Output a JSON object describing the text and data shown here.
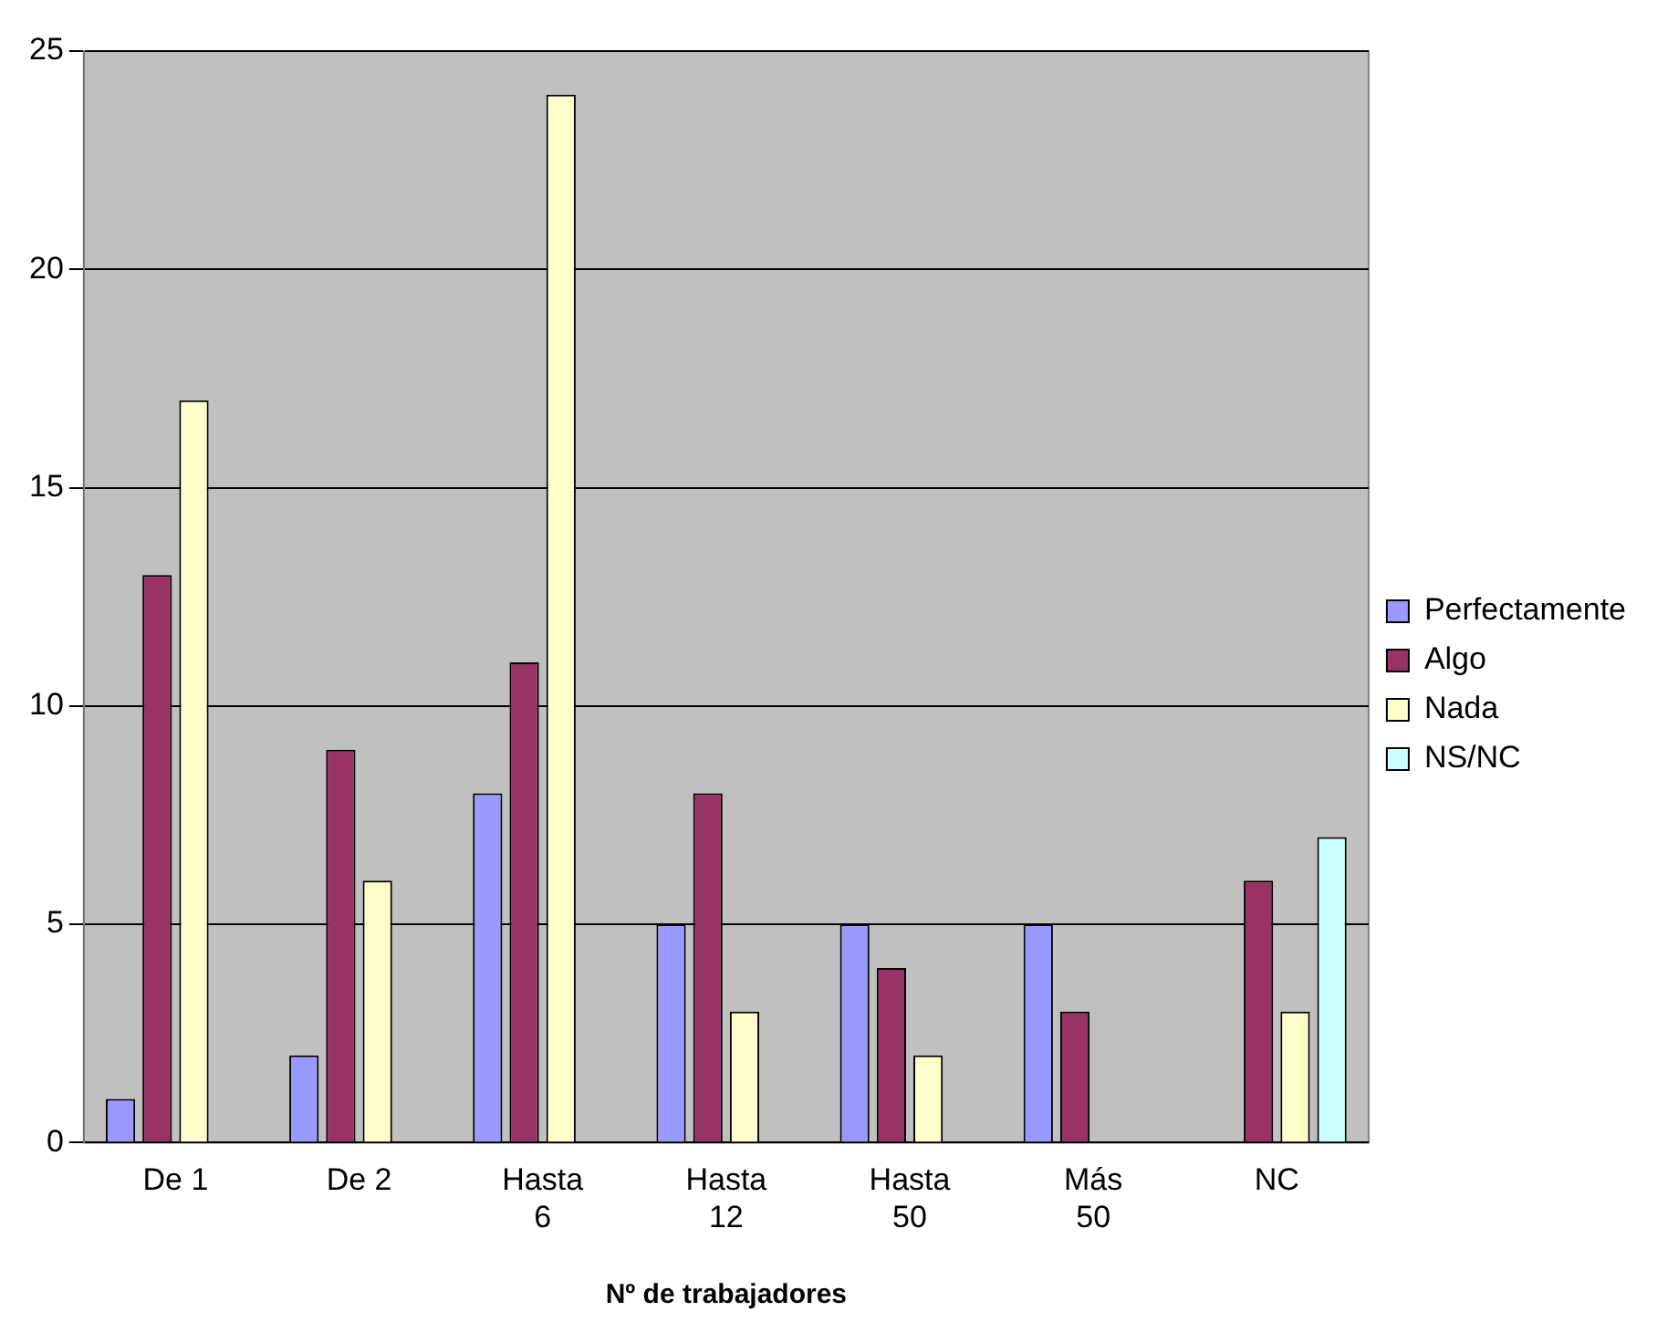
{
  "chart_data": {
    "type": "bar",
    "xlabel": "Nº de trabajadores",
    "categories": [
      "De 1",
      "De 2",
      "Hasta 6",
      "Hasta 12",
      "Hasta 50",
      "Más 50",
      "NC"
    ],
    "series": [
      {
        "name": "Perfectamente",
        "color": "#9999ff",
        "values": [
          1,
          2,
          8,
          5,
          5,
          5,
          0
        ]
      },
      {
        "name": "Algo",
        "color": "#993366",
        "values": [
          13,
          9,
          11,
          8,
          4,
          3,
          6
        ]
      },
      {
        "name": "Nada",
        "color": "#ffffcc",
        "values": [
          17,
          6,
          24,
          3,
          2,
          0,
          3
        ]
      },
      {
        "name": "NS/NC",
        "color": "#ccffff",
        "values": [
          0,
          0,
          0,
          0,
          0,
          0,
          7
        ]
      }
    ],
    "ylim": [
      0,
      25
    ],
    "yticks": [
      0,
      5,
      10,
      15,
      20,
      25
    ],
    "grid": "y",
    "legend": "right"
  }
}
